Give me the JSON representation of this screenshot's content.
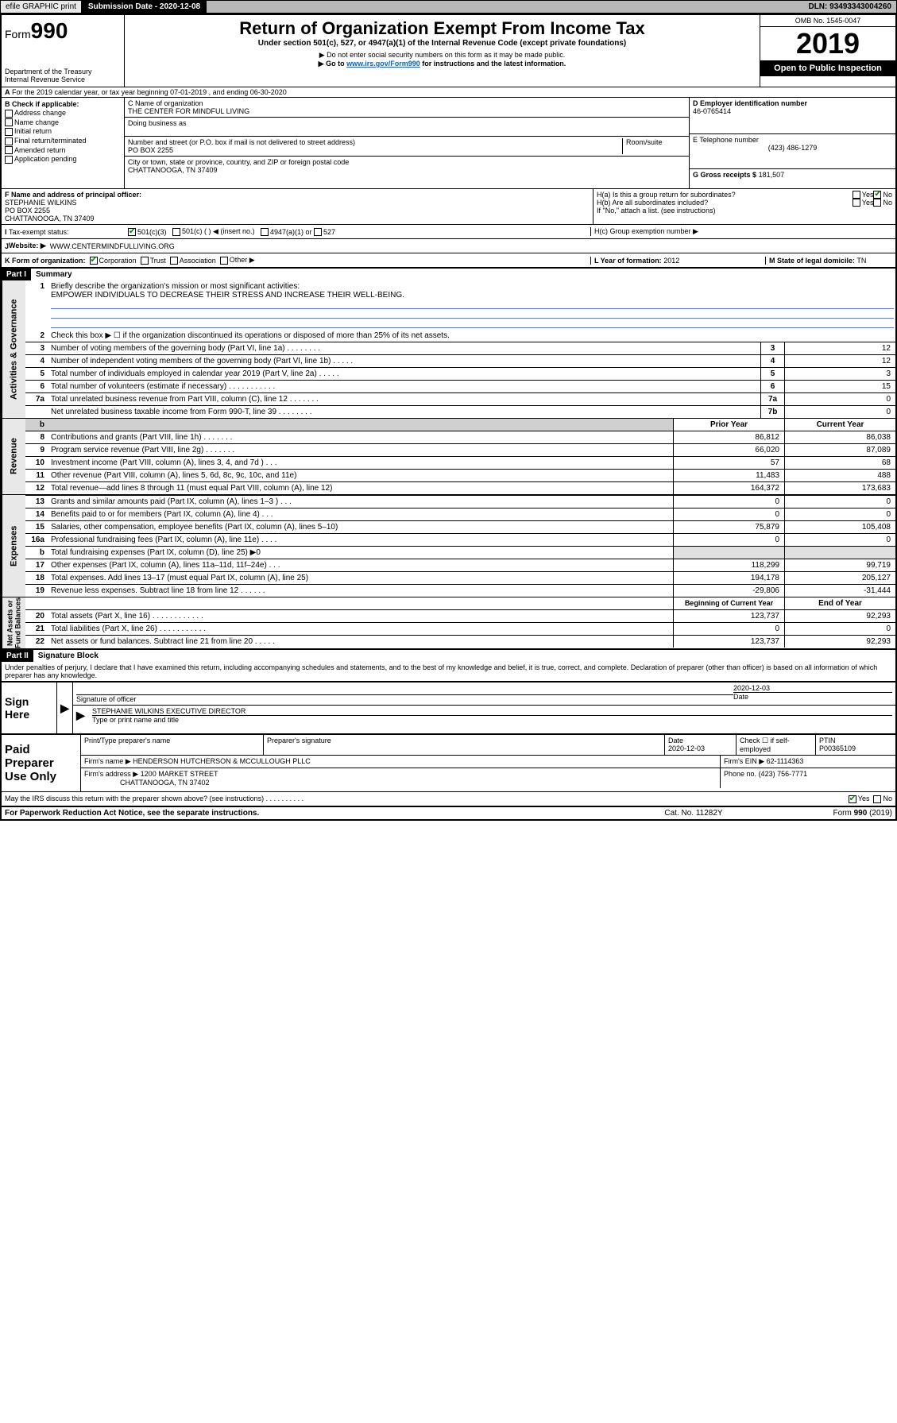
{
  "topbar": {
    "efile": "efile GRAPHIC print",
    "subdate_label": "Submission Date - 2020-12-08",
    "dln": "DLN: 93493343004260"
  },
  "header": {
    "form_label": "Form",
    "form_no": "990",
    "dept": "Department of the Treasury\nInternal Revenue Service",
    "title": "Return of Organization Exempt From Income Tax",
    "subtitle": "Under section 501(c), 527, or 4947(a)(1) of the Internal Revenue Code (except private foundations)",
    "warn1": "▶ Do not enter social security numbers on this form as it may be made public.",
    "warn2_pre": "▶ Go to ",
    "warn2_link": "www.irs.gov/Form990",
    "warn2_post": " for instructions and the latest information.",
    "omb": "OMB No. 1545-0047",
    "year": "2019",
    "oti": "Open to Public Inspection"
  },
  "section_a": "For the 2019 calendar year, or tax year beginning 07-01-2019    , and ending 06-30-2020",
  "box_b": {
    "label": "B Check if applicable:",
    "opts": [
      "Address change",
      "Name change",
      "Initial return",
      "Final return/terminated",
      "Amended return",
      "Application pending"
    ]
  },
  "box_c": {
    "name_label": "C Name of organization",
    "name": "THE CENTER FOR MINDFUL LIVING",
    "dba_label": "Doing business as",
    "addr_label": "Number and street (or P.O. box if mail is not delivered to street address)",
    "room_label": "Room/suite",
    "addr": "PO BOX 2255",
    "city_label": "City or town, state or province, country, and ZIP or foreign postal code",
    "city": "CHATTANOOGA, TN  37409"
  },
  "box_d": {
    "label": "D Employer identification number",
    "value": "46-0765414"
  },
  "box_e": {
    "label": "E Telephone number",
    "value": "(423) 486-1279"
  },
  "box_g": {
    "label": "G Gross receipts $",
    "value": "181,507"
  },
  "box_f": {
    "label": "F  Name and address of principal officer:",
    "name": "STEPHANIE WILKINS",
    "addr1": "PO BOX 2255",
    "addr2": "CHATTANOOGA, TN  37409"
  },
  "box_h": {
    "a_label": "H(a)  Is this a group return for subordinates?",
    "b_label": "H(b)  Are all subordinates included?",
    "note": "If \"No,\" attach a list. (see instructions)",
    "c_label": "H(c)  Group exemption number ▶"
  },
  "tax_status": {
    "label": "Tax-exempt status:",
    "o1": "501(c)(3)",
    "o2": "501(c) (   ) ◀ (insert no.)",
    "o3": "4947(a)(1) or",
    "o4": "527"
  },
  "website": {
    "label": "Website: ▶",
    "value": "WWW.CENTERMINDFULLIVING.ORG"
  },
  "box_k": {
    "label": "K Form of organization:",
    "opts": [
      "Corporation",
      "Trust",
      "Association",
      "Other ▶"
    ]
  },
  "box_l": {
    "label": "L Year of formation:",
    "value": "2012"
  },
  "box_m": {
    "label": "M State of legal domicile:",
    "value": "TN"
  },
  "part1": {
    "hdr": "Part I",
    "title": "Summary",
    "l1_label": "Briefly describe the organization's mission or most significant activities:",
    "l1_text": "EMPOWER INDIVIDUALS TO DECREASE THEIR STRESS AND INCREASE THEIR WELL-BEING.",
    "l2": "Check this box ▶ ☐  if the organization discontinued its operations or disposed of more than 25% of its net assets.",
    "lines_ag": [
      {
        "n": "3",
        "t": "Number of voting members of the governing body (Part VI, line 1a)   .   .   .   .   .   .   .   .",
        "b": "3",
        "v": "12"
      },
      {
        "n": "4",
        "t": "Number of independent voting members of the governing body (Part VI, line 1b)  .   .   .   .   .",
        "b": "4",
        "v": "12"
      },
      {
        "n": "5",
        "t": "Total number of individuals employed in calendar year 2019 (Part V, line 2a)   .   .   .   .   .",
        "b": "5",
        "v": "3"
      },
      {
        "n": "6",
        "t": "Total number of volunteers (estimate if necessary)   .   .   .   .   .   .   .   .   .   .   .",
        "b": "6",
        "v": "15"
      },
      {
        "n": "7a",
        "t": "Total unrelated business revenue from Part VIII, column (C), line 12   .   .   .   .   .   .   .",
        "b": "7a",
        "v": "0"
      },
      {
        "n": "",
        "t": "Net unrelated business taxable income from Form 990-T, line 39   .   .   .   .   .   .   .   .",
        "b": "7b",
        "v": "0"
      }
    ],
    "col_prior": "Prior Year",
    "col_current": "Current Year",
    "rev": [
      {
        "n": "8",
        "t": "Contributions and grants (Part VIII, line 1h)   .   .   .   .   .   .   .",
        "p": "86,812",
        "c": "86,038"
      },
      {
        "n": "9",
        "t": "Program service revenue (Part VIII, line 2g)   .   .   .   .   .   .   .",
        "p": "66,020",
        "c": "87,089"
      },
      {
        "n": "10",
        "t": "Investment income (Part VIII, column (A), lines 3, 4, and 7d )   .   .   .",
        "p": "57",
        "c": "68"
      },
      {
        "n": "11",
        "t": "Other revenue (Part VIII, column (A), lines 5, 6d, 8c, 9c, 10c, and 11e)",
        "p": "11,483",
        "c": "488"
      },
      {
        "n": "12",
        "t": "Total revenue—add lines 8 through 11 (must equal Part VIII, column (A), line 12)",
        "p": "164,372",
        "c": "173,683"
      }
    ],
    "exp": [
      {
        "n": "13",
        "t": "Grants and similar amounts paid (Part IX, column (A), lines 1–3 )   .   .   .",
        "p": "0",
        "c": "0"
      },
      {
        "n": "14",
        "t": "Benefits paid to or for members (Part IX, column (A), line 4)   .   .   .",
        "p": "0",
        "c": "0"
      },
      {
        "n": "15",
        "t": "Salaries, other compensation, employee benefits (Part IX, column (A), lines 5–10)",
        "p": "75,879",
        "c": "105,408"
      },
      {
        "n": "16a",
        "t": "Professional fundraising fees (Part IX, column (A), line 11e)   .   .   .   .",
        "p": "0",
        "c": "0"
      },
      {
        "n": "b",
        "t": "Total fundraising expenses (Part IX, column (D), line 25) ▶0",
        "p": "",
        "c": "",
        "shade": true
      },
      {
        "n": "17",
        "t": "Other expenses (Part IX, column (A), lines 11a–11d, 11f–24e)   .   .   .",
        "p": "118,299",
        "c": "99,719"
      },
      {
        "n": "18",
        "t": "Total expenses. Add lines 13–17 (must equal Part IX, column (A), line 25)",
        "p": "194,178",
        "c": "205,127"
      },
      {
        "n": "19",
        "t": "Revenue less expenses. Subtract line 18 from line 12   .   .   .   .   .   .",
        "p": "-29,806",
        "c": "-31,444"
      }
    ],
    "col_begin": "Beginning of Current Year",
    "col_end": "End of Year",
    "na": [
      {
        "n": "20",
        "t": "Total assets (Part X, line 16)   .   .   .   .   .   .   .   .   .   .   .   .",
        "p": "123,737",
        "c": "92,293"
      },
      {
        "n": "21",
        "t": "Total liabilities (Part X, line 26)   .   .   .   .   .   .   .   .   .   .   .",
        "p": "0",
        "c": "0"
      },
      {
        "n": "22",
        "t": "Net assets or fund balances. Subtract line 21 from line 20   .   .   .   .   .",
        "p": "123,737",
        "c": "92,293"
      }
    ],
    "vlabels": {
      "ag": "Activities & Governance",
      "rev": "Revenue",
      "exp": "Expenses",
      "na": "Net Assets or\nFund Balances"
    }
  },
  "part2": {
    "hdr": "Part II",
    "title": "Signature Block",
    "declaration": "Under penalties of perjury, I declare that I have examined this return, including accompanying schedules and statements, and to the best of my knowledge and belief, it is true, correct, and complete. Declaration of preparer (other than officer) is based on all information of which preparer has any knowledge."
  },
  "sign": {
    "label": "Sign Here",
    "sig_officer": "Signature of officer",
    "date": "2020-12-03",
    "date_label": "Date",
    "name": "STEPHANIE WILKINS EXECUTIVE DIRECTOR",
    "name_label": "Type or print name and title"
  },
  "paid": {
    "label": "Paid Preparer Use Only",
    "h1": "Print/Type preparer's name",
    "h2": "Preparer's signature",
    "h3_label": "Date",
    "h3": "2020-12-03",
    "h4": "Check ☐ if self-employed",
    "h5_label": "PTIN",
    "h5": "P00365109",
    "firm_label": "Firm's name     ▶",
    "firm": "HENDERSON HUTCHERSON & MCCULLOUGH PLLC",
    "ein_label": "Firm's EIN ▶",
    "ein": "62-1114363",
    "addr_label": "Firm's address  ▶",
    "addr1": "1200 MARKET STREET",
    "addr2": "CHATTANOOGA, TN  37402",
    "phone_label": "Phone no.",
    "phone": "(423) 756-7771"
  },
  "discuss": "May the IRS discuss this return with the preparer shown above? (see instructions)   .   .   .   .   .   .   .   .   .   .",
  "footer": {
    "l": "For Paperwork Reduction Act Notice, see the separate instructions.",
    "c": "Cat. No. 11282Y",
    "r": "Form 990 (2019)"
  },
  "yes": "Yes",
  "no": "No"
}
